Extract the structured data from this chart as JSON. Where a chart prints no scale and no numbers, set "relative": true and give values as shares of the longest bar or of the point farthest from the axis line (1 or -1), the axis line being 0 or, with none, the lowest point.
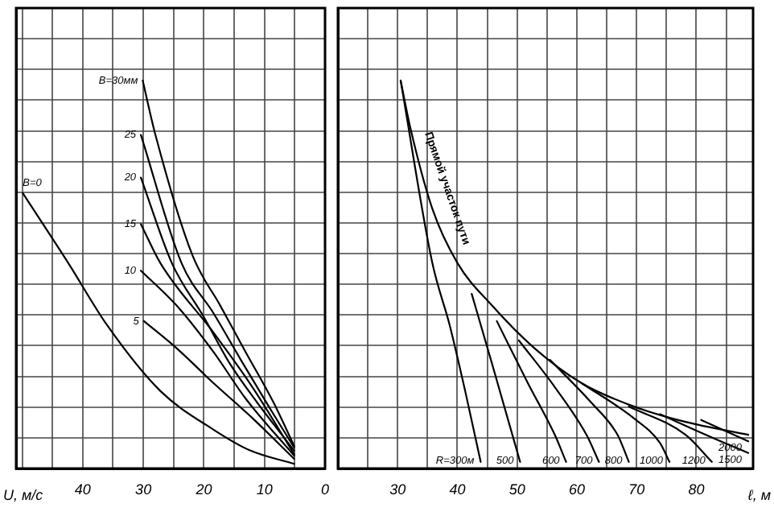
{
  "chart_data": [
    {
      "type": "line",
      "relative": true,
      "xlabel": "U, м/с",
      "xlim": [
        51,
        0
      ],
      "xticks": [
        {
          "value": 50,
          "label": null
        },
        {
          "value": 45,
          "label": null
        },
        40,
        {
          "value": 35,
          "label": null
        },
        30,
        {
          "value": 25,
          "label": null
        },
        20,
        {
          "value": 15,
          "label": null
        },
        10,
        {
          "value": 5,
          "label": null
        },
        0
      ],
      "grid": true,
      "legend": false,
      "marker": "none",
      "line_style": "solid",
      "series": [
        {
          "name": "B=30мм",
          "color": "#000000",
          "x": [
            30.1,
            28,
            21.9,
            17.3,
            13.1,
            8.5,
            5.1
          ],
          "values": [
            1.0,
            0.86,
            0.55,
            0.42,
            0.3,
            0.17,
            0.058
          ]
        },
        {
          "name": "25",
          "color": "#000000",
          "x": [
            30.4,
            23.7,
            18.4,
            13.9,
            9.3,
            5.1
          ],
          "values": [
            0.86,
            0.53,
            0.4,
            0.28,
            0.16,
            0.054
          ]
        },
        {
          "name": "20",
          "color": "#000000",
          "x": [
            30.4,
            25.3,
            20,
            15.7,
            11.2,
            5.1
          ],
          "values": [
            0.75,
            0.53,
            0.39,
            0.27,
            0.17,
            0.046
          ]
        },
        {
          "name": "15",
          "color": "#000000",
          "x": [
            30.4,
            27.2,
            18.4,
            12,
            5.1
          ],
          "values": [
            0.63,
            0.53,
            0.35,
            0.21,
            0.037
          ]
        },
        {
          "name": "10",
          "color": "#000000",
          "x": [
            30.4,
            24.5,
            18.4,
            13.1,
            5.1
          ],
          "values": [
            0.51,
            0.42,
            0.3,
            0.18,
            0.033
          ]
        },
        {
          "name": "5",
          "color": "#000000",
          "x": [
            29.9,
            24.5,
            18.4,
            12,
            5.1
          ],
          "values": [
            0.38,
            0.31,
            0.22,
            0.13,
            0.025
          ]
        },
        {
          "name": "B=0",
          "color": "#000000",
          "x": [
            49.9,
            42.4,
            36,
            27.2,
            18.4,
            12.3,
            5.1
          ],
          "values": [
            0.71,
            0.53,
            0.37,
            0.2,
            0.1,
            0.046,
            0.012
          ]
        }
      ]
    },
    {
      "type": "line",
      "relative": true,
      "xlabel": "ℓ, м",
      "xlim": [
        20,
        89.5
      ],
      "xticks": [
        {
          "value": 20,
          "label": null
        },
        {
          "value": 25,
          "label": null
        },
        30,
        {
          "value": 35,
          "label": null
        },
        40,
        {
          "value": 45,
          "label": null
        },
        50,
        {
          "value": 55,
          "label": null
        },
        60,
        {
          "value": 65,
          "label": null
        },
        70,
        {
          "value": 75,
          "label": null
        },
        80,
        {
          "value": 85,
          "label": null
        }
      ],
      "grid": true,
      "legend": false,
      "marker": "none",
      "line_style": "solid",
      "annotations": [
        "Прямой участок пути"
      ],
      "series": [
        {
          "color": "#000000",
          "x": [
            30.5,
            32.1,
            35.8,
            40,
            45.8,
            52.9,
            60.8,
            69.5,
            78.2,
            88.7
          ],
          "values": [
            1.0,
            0.88,
            0.67,
            0.53,
            0.42,
            0.31,
            0.22,
            0.16,
            0.12,
            0.087
          ]
        },
        {
          "name": "R=300м",
          "color": "#000000",
          "x": [
            30.5,
            35.8,
            38.7,
            41.3,
            43.9
          ],
          "values": [
            1.0,
            0.53,
            0.37,
            0.2,
            0.017
          ]
        },
        {
          "name": "500",
          "color": "#000000",
          "x": [
            42.4,
            45.8,
            48.4,
            50.5
          ],
          "values": [
            0.45,
            0.27,
            0.13,
            0.017
          ]
        },
        {
          "name": "600",
          "color": "#000000",
          "x": [
            46.6,
            51.8,
            56.3,
            58.2
          ],
          "values": [
            0.38,
            0.22,
            0.087,
            0.017
          ]
        },
        {
          "name": "700",
          "color": "#000000",
          "x": [
            50.3,
            56.3,
            61.6,
            63.7
          ],
          "values": [
            0.33,
            0.21,
            0.087,
            0.017
          ]
        },
        {
          "name": "800",
          "color": "#000000",
          "x": [
            55.5,
            62.4,
            66.8,
            68.7
          ],
          "values": [
            0.28,
            0.17,
            0.087,
            0.017
          ]
        },
        {
          "name": "1000",
          "color": "#000000",
          "x": [
            60.8,
            69.5,
            73.9,
            75.5
          ],
          "values": [
            0.22,
            0.13,
            0.066,
            0.017
          ]
        },
        {
          "name": "1200",
          "color": "#000000",
          "x": [
            68.7,
            78.2,
            82.6
          ],
          "values": [
            0.16,
            0.087,
            0.017
          ]
        },
        {
          "name": "1500",
          "color": "#000000",
          "x": [
            73.9,
            82.6,
            88.7
          ],
          "values": [
            0.14,
            0.08,
            0.04
          ]
        },
        {
          "name": "2000",
          "color": "#000000",
          "x": [
            80.8,
            88.7
          ],
          "values": [
            0.125,
            0.07
          ]
        }
      ]
    }
  ]
}
